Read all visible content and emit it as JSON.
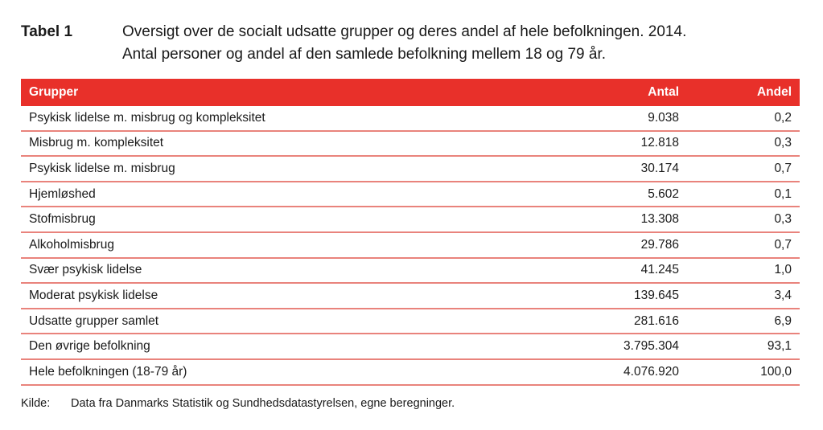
{
  "caption": {
    "label": "Tabel 1",
    "line1": "Oversigt over de socialt udsatte grupper og deres andel af hele befolkningen. 2014.",
    "line2": "Antal personer og andel af den samlede befolkning mellem 18 og 79 år."
  },
  "table": {
    "header_color": "#e8302a",
    "columns": [
      "Grupper",
      "Antal",
      "Andel"
    ],
    "rows": [
      [
        "Psykisk lidelse m. misbrug og kompleksitet",
        "9.038",
        "0,2"
      ],
      [
        "Misbrug m. kompleksitet",
        "12.818",
        "0,3"
      ],
      [
        "Psykisk lidelse m. misbrug",
        "30.174",
        "0,7"
      ],
      [
        "Hjemløshed",
        "5.602",
        "0,1"
      ],
      [
        "Stofmisbrug",
        "13.308",
        "0,3"
      ],
      [
        "Alkoholmisbrug",
        "29.786",
        "0,7"
      ],
      [
        "Svær psykisk lidelse",
        "41.245",
        "1,0"
      ],
      [
        "Moderat psykisk lidelse",
        "139.645",
        "3,4"
      ],
      [
        "Udsatte grupper samlet",
        "281.616",
        "6,9"
      ],
      [
        "Den øvrige befolkning",
        "3.795.304",
        "93,1"
      ],
      [
        "Hele befolkningen (18-79 år)",
        "4.076.920",
        "100,0"
      ]
    ]
  },
  "source": {
    "label": "Kilde:",
    "text": "Data fra Danmarks Statistik og Sundhedsdatastyrelsen, egne beregninger."
  }
}
